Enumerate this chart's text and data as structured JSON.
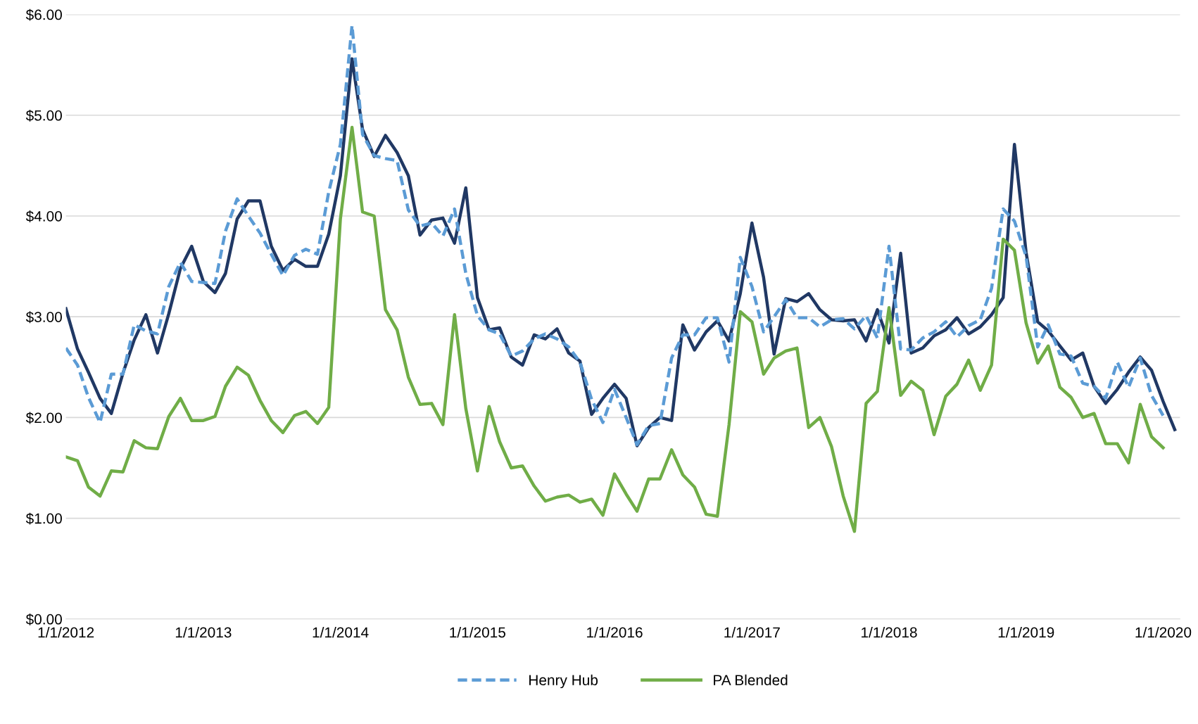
{
  "chart_data": {
    "type": "line",
    "x": [
      "2012-01",
      "2012-02",
      "2012-03",
      "2012-04",
      "2012-05",
      "2012-06",
      "2012-07",
      "2012-08",
      "2012-09",
      "2012-10",
      "2012-11",
      "2012-12",
      "2013-01",
      "2013-02",
      "2013-03",
      "2013-04",
      "2013-05",
      "2013-06",
      "2013-07",
      "2013-08",
      "2013-09",
      "2013-10",
      "2013-11",
      "2013-12",
      "2014-01",
      "2014-02",
      "2014-03",
      "2014-04",
      "2014-05",
      "2014-06",
      "2014-07",
      "2014-08",
      "2014-09",
      "2014-10",
      "2014-11",
      "2014-12",
      "2015-01",
      "2015-02",
      "2015-03",
      "2015-04",
      "2015-05",
      "2015-06",
      "2015-07",
      "2015-08",
      "2015-09",
      "2015-10",
      "2015-11",
      "2015-12",
      "2016-01",
      "2016-02",
      "2016-03",
      "2016-04",
      "2016-05",
      "2016-06",
      "2016-07",
      "2016-08",
      "2016-09",
      "2016-10",
      "2016-11",
      "2016-12",
      "2017-01",
      "2017-02",
      "2017-03",
      "2017-04",
      "2017-05",
      "2017-06",
      "2017-07",
      "2017-08",
      "2017-09",
      "2017-10",
      "2017-11",
      "2017-12",
      "2018-01",
      "2018-02",
      "2018-03",
      "2018-04",
      "2018-05",
      "2018-06",
      "2018-07",
      "2018-08",
      "2018-09",
      "2018-10",
      "2018-11",
      "2018-12",
      "2019-01",
      "2019-02",
      "2019-03",
      "2019-04",
      "2019-05",
      "2019-06",
      "2019-07",
      "2019-08",
      "2019-09",
      "2019-10",
      "2019-11",
      "2019-12",
      "2020-01",
      "2020-02"
    ],
    "ylim": [
      0,
      6
    ],
    "yticks": [
      {
        "value": 0,
        "label": "$0.00"
      },
      {
        "value": 1,
        "label": "$1.00"
      },
      {
        "value": 2,
        "label": "$2.00"
      },
      {
        "value": 3,
        "label": "$3.00"
      },
      {
        "value": 4,
        "label": "$4.00"
      },
      {
        "value": 5,
        "label": "$5.00"
      },
      {
        "value": 6,
        "label": "$6.00"
      }
    ],
    "xlim": [
      "2012-01-01",
      "2020-02-15"
    ],
    "xticks": [
      {
        "value": "2012-01-01",
        "label": "1/1/2012"
      },
      {
        "value": "2013-01-01",
        "label": "1/1/2013"
      },
      {
        "value": "2014-01-01",
        "label": "1/1/2014"
      },
      {
        "value": "2015-01-01",
        "label": "1/1/2015"
      },
      {
        "value": "2016-01-01",
        "label": "1/1/2016"
      },
      {
        "value": "2017-01-01",
        "label": "1/1/2017"
      },
      {
        "value": "2018-01-01",
        "label": "1/1/2018"
      },
      {
        "value": "2019-01-01",
        "label": "1/1/2019"
      },
      {
        "value": "2020-01-01",
        "label": "1/1/2020"
      }
    ],
    "grid": "y",
    "legend": "bottom",
    "marker": "none",
    "series": [
      {
        "name": "Henry Hub",
        "color": "#5b9bd5",
        "line_style": "dashed",
        "values": [
          2.69,
          2.52,
          2.2,
          1.95,
          2.43,
          2.43,
          2.92,
          2.86,
          2.83,
          3.3,
          3.54,
          3.35,
          3.34,
          3.33,
          3.85,
          4.17,
          4.0,
          3.83,
          3.62,
          3.41,
          3.61,
          3.67,
          3.62,
          4.24,
          4.71,
          5.89,
          4.81,
          4.6,
          4.57,
          4.55,
          4.06,
          3.9,
          3.93,
          3.8,
          4.07,
          3.43,
          3.01,
          2.87,
          2.83,
          2.61,
          2.66,
          2.78,
          2.83,
          2.78,
          2.7,
          2.55,
          2.18,
          1.95,
          2.28,
          2.0,
          1.73,
          1.92,
          1.94,
          2.59,
          2.82,
          2.82,
          2.99,
          2.99,
          2.55,
          3.59,
          3.3,
          2.85,
          3.0,
          3.17,
          2.99,
          2.99,
          2.9,
          2.97,
          2.98,
          2.88,
          3.01,
          2.79,
          3.7,
          2.68,
          2.67,
          2.79,
          2.85,
          2.95,
          2.8,
          2.91,
          2.97,
          3.28,
          4.07,
          3.95,
          3.6,
          2.7,
          2.92,
          2.63,
          2.61,
          2.34,
          2.31,
          2.19,
          2.55,
          2.3,
          2.59,
          2.22,
          2.02,
          null
        ]
      },
      {
        "name": "PA Blended",
        "color": "#70ad47",
        "line_style": "solid",
        "values": [
          1.61,
          1.57,
          1.31,
          1.22,
          1.47,
          1.46,
          1.77,
          1.7,
          1.69,
          2.01,
          2.19,
          1.97,
          1.97,
          2.01,
          2.31,
          2.5,
          2.42,
          2.17,
          1.97,
          1.85,
          2.02,
          2.06,
          1.94,
          2.1,
          3.97,
          4.88,
          4.04,
          4.0,
          3.07,
          2.87,
          2.4,
          2.13,
          2.14,
          1.93,
          3.02,
          2.09,
          1.47,
          2.11,
          1.76,
          1.5,
          1.52,
          1.32,
          1.17,
          1.21,
          1.23,
          1.16,
          1.19,
          1.03,
          1.44,
          1.24,
          1.07,
          1.39,
          1.39,
          1.68,
          1.43,
          1.31,
          1.04,
          1.02,
          1.93,
          3.05,
          2.95,
          2.43,
          2.59,
          2.66,
          2.69,
          1.9,
          2.0,
          1.71,
          1.22,
          0.87,
          2.14,
          2.26,
          3.09,
          2.22,
          2.36,
          2.27,
          1.83,
          2.21,
          2.33,
          2.57,
          2.27,
          2.52,
          3.77,
          3.66,
          2.94,
          2.54,
          2.71,
          2.3,
          2.2,
          2.0,
          2.04,
          1.74,
          1.74,
          1.55,
          2.13,
          1.81,
          1.7,
          null
        ]
      },
      {
        "color": "#203864",
        "line_style": "solid",
        "values": [
          3.08,
          2.68,
          2.45,
          2.19,
          2.04,
          2.44,
          2.77,
          3.02,
          2.64,
          3.03,
          3.48,
          3.7,
          3.35,
          3.24,
          3.43,
          3.97,
          4.15,
          4.15,
          3.7,
          3.46,
          3.57,
          3.5,
          3.5,
          3.82,
          4.4,
          5.56,
          4.86,
          4.59,
          4.8,
          4.63,
          4.4,
          3.81,
          3.96,
          3.98,
          3.73,
          4.28,
          3.19,
          2.87,
          2.89,
          2.6,
          2.52,
          2.82,
          2.78,
          2.88,
          2.64,
          2.56,
          2.03,
          2.19,
          2.33,
          2.19,
          1.72,
          1.9,
          2.0,
          1.97,
          2.92,
          2.67,
          2.85,
          2.96,
          2.76,
          3.23,
          3.93,
          3.39,
          2.63,
          3.18,
          3.15,
          3.23,
          3.07,
          2.97,
          2.96,
          2.97,
          2.76,
          3.07,
          2.74,
          3.63,
          2.64,
          2.69,
          2.81,
          2.87,
          2.99,
          2.83,
          2.9,
          3.02,
          3.19,
          4.71,
          3.64,
          2.95,
          2.86,
          2.71,
          2.57,
          2.64,
          2.31,
          2.14,
          2.28,
          2.45,
          2.6,
          2.47,
          2.16,
          1.88
        ]
      }
    ]
  }
}
